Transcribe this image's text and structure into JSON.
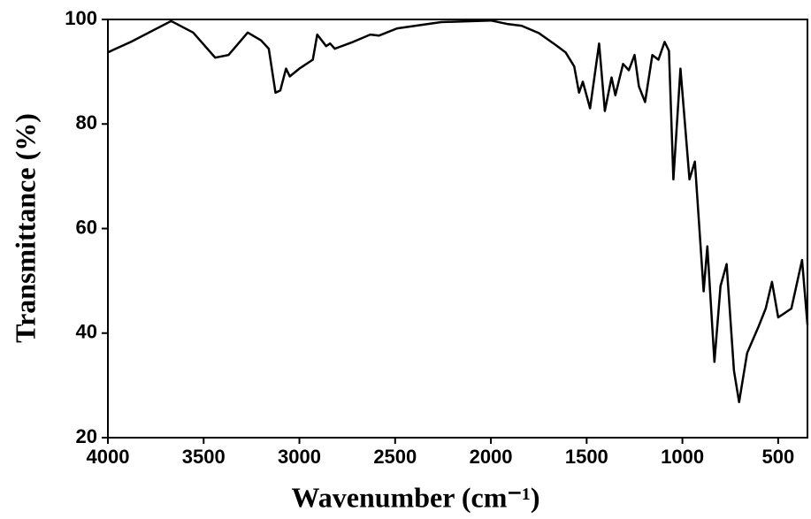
{
  "chart_data": {
    "type": "line",
    "xlabel": "Wavenumber (cm⁻¹)",
    "ylabel": "Transmittance (%)",
    "color": "#000000",
    "xlim": [
      4000,
      347
    ],
    "ylim": [
      20,
      100
    ],
    "xticks": [
      4000,
      3500,
      3000,
      2500,
      2000,
      1500,
      1000,
      500
    ],
    "yticks": [
      20,
      40,
      60,
      80,
      100
    ],
    "x": [
      4000,
      3880,
      3670,
      3555,
      3440,
      3370,
      3270,
      3200,
      3160,
      3125,
      3100,
      3070,
      3050,
      3000,
      2930,
      2907,
      2860,
      2840,
      2815,
      2720,
      2630,
      2585,
      2490,
      2260,
      2000,
      1910,
      1840,
      1750,
      1665,
      1610,
      1565,
      1540,
      1520,
      1482,
      1435,
      1405,
      1370,
      1350,
      1310,
      1280,
      1250,
      1227,
      1195,
      1157,
      1125,
      1093,
      1070,
      1047,
      1010,
      963,
      935,
      889,
      870,
      833,
      801,
      769,
      731,
      704,
      662,
      602,
      565,
      532,
      500,
      431,
      375,
      347
    ],
    "values": [
      93.7,
      95.7,
      99.7,
      97.5,
      92.7,
      93.2,
      97.5,
      96,
      94.4,
      86,
      86.4,
      90.6,
      89.1,
      90.6,
      92.3,
      97.1,
      94.9,
      95.4,
      94.4,
      95.7,
      97.1,
      96.9,
      98.3,
      99.5,
      99.8,
      99.1,
      98.8,
      97.4,
      95.2,
      93.7,
      91,
      86,
      88.1,
      83,
      95.4,
      82.5,
      88.9,
      85.5,
      91.5,
      90.3,
      93.2,
      87.2,
      84.2,
      93.2,
      92.3,
      95.7,
      94,
      69.4,
      90.6,
      69.4,
      72.8,
      48,
      56.6,
      34.5,
      49,
      53.2,
      32.8,
      26.8,
      36.2,
      41.3,
      44.7,
      49.8,
      43,
      44.7,
      54,
      41.6
    ]
  }
}
